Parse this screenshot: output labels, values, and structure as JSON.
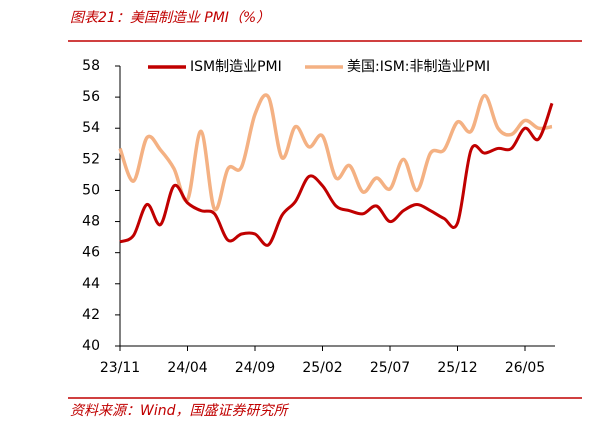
{
  "header": {
    "title": "图表21：美国制造业 PMI（%）"
  },
  "chart_data": {
    "type": "line",
    "categories": [
      "23/11",
      null,
      null,
      null,
      null,
      "24/04",
      null,
      null,
      null,
      null,
      "24/09",
      null,
      null,
      null,
      null,
      "25/02",
      null,
      null,
      null,
      null,
      "25/07",
      null,
      null,
      null,
      null,
      "25/12",
      null,
      null,
      null,
      null,
      "26/05",
      null,
      null
    ],
    "series": [
      {
        "name": "ISM制造业PMI",
        "color": "#c00000",
        "values": [
          46.7,
          47.1,
          49.1,
          47.8,
          50.3,
          49.2,
          48.7,
          48.5,
          46.8,
          47.2,
          47.2,
          46.5,
          48.4,
          49.3,
          50.9,
          50.3,
          49.0,
          48.7,
          48.5,
          49.0,
          48.0,
          48.7,
          49.1,
          48.7,
          48.2,
          47.9,
          52.6,
          52.4,
          52.7,
          52.7,
          54.0,
          53.3,
          55.6
        ]
      },
      {
        "name": "美国:ISM:非制造业PMI",
        "color": "#f4b183",
        "values": [
          52.7,
          50.6,
          53.4,
          52.6,
          51.4,
          49.4,
          53.8,
          48.8,
          51.4,
          51.5,
          54.9,
          56.0,
          52.1,
          54.1,
          52.8,
          53.5,
          50.8,
          51.6,
          49.9,
          50.8,
          50.1,
          52.0,
          50.0,
          52.4,
          52.6,
          54.4,
          53.8,
          56.1,
          54.0,
          53.6,
          54.5,
          54.0,
          54.1
        ]
      }
    ],
    "ylim": [
      40,
      58
    ],
    "yticks": [
      40,
      42,
      44,
      46,
      48,
      50,
      52,
      54,
      56,
      58
    ],
    "grid": false,
    "legend": "top"
  },
  "footer": {
    "source": "资料来源：Wind，国盛证券研究所"
  }
}
